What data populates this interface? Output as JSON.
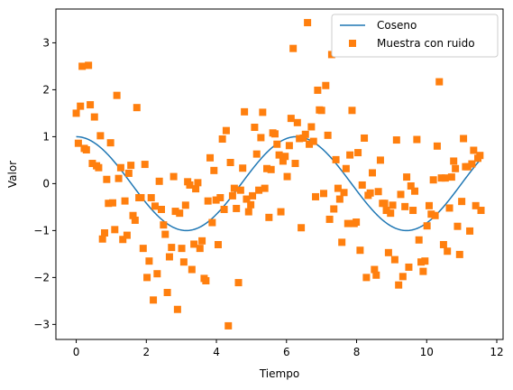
{
  "chart_data": {
    "type": "scatter",
    "title": "",
    "xlabel": "Tiempo",
    "ylabel": "Valor",
    "xlim": [
      -0.58,
      12.18
    ],
    "ylim": [
      -3.32,
      3.72
    ],
    "xticks": [
      0,
      2,
      4,
      6,
      8,
      10,
      12
    ],
    "yticks": [
      -3,
      -2,
      -1,
      0,
      1,
      2,
      3
    ],
    "grid": false,
    "legend": {
      "position": "upper right",
      "entries": [
        "Coseno",
        "Muestra con ruido"
      ]
    },
    "series": [
      {
        "name": "Coseno",
        "kind": "line",
        "color": "#1f77b4",
        "function": "cos",
        "x_range": [
          0,
          11.5
        ]
      },
      {
        "name": "Muestra con ruido",
        "kind": "scatter",
        "marker": "square",
        "color": "#ff7f0e",
        "points": [
          [
            0.0,
            1.5
          ],
          [
            0.06,
            0.86
          ],
          [
            0.12,
            1.65
          ],
          [
            0.17,
            2.5
          ],
          [
            0.23,
            0.75
          ],
          [
            0.29,
            0.72
          ],
          [
            0.35,
            2.52
          ],
          [
            0.4,
            1.68
          ],
          [
            0.46,
            0.43
          ],
          [
            0.52,
            1.42
          ],
          [
            0.58,
            0.38
          ],
          [
            0.64,
            0.34
          ],
          [
            0.69,
            1.02
          ],
          [
            0.75,
            -1.18
          ],
          [
            0.81,
            -1.05
          ],
          [
            0.87,
            0.09
          ],
          [
            0.92,
            -0.42
          ],
          [
            0.98,
            0.87
          ],
          [
            1.04,
            -0.41
          ],
          [
            1.1,
            -0.98
          ],
          [
            1.16,
            1.88
          ],
          [
            1.21,
            0.11
          ],
          [
            1.27,
            0.34
          ],
          [
            1.33,
            -1.19
          ],
          [
            1.39,
            -0.37
          ],
          [
            1.45,
            -1.1
          ],
          [
            1.5,
            0.22
          ],
          [
            1.56,
            0.39
          ],
          [
            1.62,
            -0.68
          ],
          [
            1.68,
            -0.78
          ],
          [
            1.73,
            1.62
          ],
          [
            1.79,
            -0.3
          ],
          [
            1.85,
            -0.3
          ],
          [
            1.91,
            -1.38
          ],
          [
            1.96,
            0.41
          ],
          [
            2.02,
            -2.0
          ],
          [
            2.08,
            -1.65
          ],
          [
            2.14,
            -0.3
          ],
          [
            2.2,
            -2.48
          ],
          [
            2.25,
            -0.48
          ],
          [
            2.31,
            -1.92
          ],
          [
            2.37,
            0.05
          ],
          [
            2.43,
            -0.55
          ],
          [
            2.49,
            -0.88
          ],
          [
            2.54,
            -1.08
          ],
          [
            2.6,
            -2.32
          ],
          [
            2.66,
            -1.56
          ],
          [
            2.72,
            -1.36
          ],
          [
            2.78,
            0.15
          ],
          [
            2.83,
            -0.59
          ],
          [
            2.89,
            -2.68
          ],
          [
            2.95,
            -0.63
          ],
          [
            3.01,
            -1.38
          ],
          [
            3.07,
            -1.67
          ],
          [
            3.12,
            -0.46
          ],
          [
            3.18,
            0.04
          ],
          [
            3.24,
            -0.03
          ],
          [
            3.3,
            -1.83
          ],
          [
            3.36,
            -1.29
          ],
          [
            3.41,
            -0.11
          ],
          [
            3.47,
            0.02
          ],
          [
            3.53,
            -1.38
          ],
          [
            3.59,
            -1.22
          ],
          [
            3.65,
            -2.02
          ],
          [
            3.7,
            -2.07
          ],
          [
            3.76,
            -0.37
          ],
          [
            3.82,
            0.55
          ],
          [
            3.88,
            -0.83
          ],
          [
            3.93,
            0.28
          ],
          [
            3.99,
            -0.35
          ],
          [
            4.05,
            -1.3
          ],
          [
            4.11,
            -0.3
          ],
          [
            4.17,
            0.95
          ],
          [
            4.22,
            -0.55
          ],
          [
            4.28,
            1.13
          ],
          [
            4.34,
            -3.03
          ],
          [
            4.4,
            0.45
          ],
          [
            4.46,
            -0.26
          ],
          [
            4.51,
            -0.1
          ],
          [
            4.57,
            -0.53
          ],
          [
            4.63,
            -2.11
          ],
          [
            4.69,
            -0.14
          ],
          [
            4.75,
            0.33
          ],
          [
            4.8,
            1.53
          ],
          [
            4.86,
            -0.33
          ],
          [
            4.92,
            -0.6
          ],
          [
            4.98,
            -0.45
          ],
          [
            5.03,
            -0.26
          ],
          [
            5.09,
            1.2
          ],
          [
            5.15,
            0.63
          ],
          [
            5.21,
            -0.14
          ],
          [
            5.27,
            0.98
          ],
          [
            5.32,
            1.52
          ],
          [
            5.38,
            -0.1
          ],
          [
            5.44,
            0.32
          ],
          [
            5.5,
            -0.72
          ],
          [
            5.56,
            0.3
          ],
          [
            5.61,
            1.08
          ],
          [
            5.67,
            1.06
          ],
          [
            5.73,
            0.84
          ],
          [
            5.79,
            0.61
          ],
          [
            5.84,
            -0.6
          ],
          [
            5.9,
            0.48
          ],
          [
            5.96,
            0.58
          ],
          [
            6.02,
            0.15
          ],
          [
            6.08,
            0.81
          ],
          [
            6.13,
            1.39
          ],
          [
            6.19,
            2.88
          ],
          [
            6.25,
            0.43
          ],
          [
            6.31,
            1.3
          ],
          [
            6.37,
            0.96
          ],
          [
            6.42,
            -0.94
          ],
          [
            6.48,
            0.97
          ],
          [
            6.54,
            1.05
          ],
          [
            6.6,
            3.43
          ],
          [
            6.65,
            0.84
          ],
          [
            6.71,
            1.21
          ],
          [
            6.77,
            0.9
          ],
          [
            6.83,
            -0.28
          ],
          [
            6.89,
            1.99
          ],
          [
            6.94,
            1.57
          ],
          [
            7.0,
            1.56
          ],
          [
            7.06,
            -0.21
          ],
          [
            7.12,
            2.09
          ],
          [
            7.18,
            1.03
          ],
          [
            7.23,
            -0.76
          ],
          [
            7.29,
            2.75
          ],
          [
            7.35,
            -0.54
          ],
          [
            7.41,
            0.51
          ],
          [
            7.47,
            -0.1
          ],
          [
            7.52,
            -0.33
          ],
          [
            7.58,
            -1.25
          ],
          [
            7.64,
            -0.19
          ],
          [
            7.7,
            0.32
          ],
          [
            7.75,
            -0.85
          ],
          [
            7.81,
            0.61
          ],
          [
            7.87,
            1.56
          ],
          [
            7.93,
            -0.85
          ],
          [
            7.99,
            -0.82
          ],
          [
            8.04,
            0.66
          ],
          [
            8.1,
            -1.42
          ],
          [
            8.16,
            -0.03
          ],
          [
            8.22,
            0.97
          ],
          [
            8.28,
            -2.0
          ],
          [
            8.33,
            -0.25
          ],
          [
            8.39,
            -0.2
          ],
          [
            8.45,
            0.23
          ],
          [
            8.51,
            -1.83
          ],
          [
            8.56,
            -1.95
          ],
          [
            8.62,
            -0.17
          ],
          [
            8.68,
            0.5
          ],
          [
            8.74,
            -0.42
          ],
          [
            8.8,
            -0.42
          ],
          [
            8.85,
            -0.57
          ],
          [
            8.91,
            -1.47
          ],
          [
            8.97,
            -0.63
          ],
          [
            9.03,
            -0.46
          ],
          [
            9.09,
            -1.62
          ],
          [
            9.14,
            0.93
          ],
          [
            9.2,
            -2.16
          ],
          [
            9.26,
            -0.23
          ],
          [
            9.32,
            -1.98
          ],
          [
            9.38,
            -0.49
          ],
          [
            9.43,
            0.14
          ],
          [
            9.49,
            -1.78
          ],
          [
            9.55,
            -0.05
          ],
          [
            9.61,
            -0.57
          ],
          [
            9.66,
            -0.16
          ],
          [
            9.72,
            0.94
          ],
          [
            9.78,
            -1.2
          ],
          [
            9.84,
            -1.67
          ],
          [
            9.9,
            -1.87
          ],
          [
            9.95,
            -1.65
          ],
          [
            10.01,
            -0.9
          ],
          [
            10.07,
            -0.47
          ],
          [
            10.13,
            -0.65
          ],
          [
            10.19,
            0.08
          ],
          [
            10.24,
            -0.68
          ],
          [
            10.3,
            0.8
          ],
          [
            10.36,
            2.17
          ],
          [
            10.42,
            0.12
          ],
          [
            10.48,
            -1.3
          ],
          [
            10.53,
            0.12
          ],
          [
            10.59,
            -1.44
          ],
          [
            10.65,
            -0.52
          ],
          [
            10.71,
            0.14
          ],
          [
            10.77,
            0.48
          ],
          [
            10.82,
            0.32
          ],
          [
            10.88,
            -0.91
          ],
          [
            10.94,
            -1.51
          ],
          [
            11.0,
            -0.38
          ],
          [
            11.05,
            0.96
          ],
          [
            11.11,
            0.36
          ],
          [
            11.17,
            0.36
          ],
          [
            11.23,
            -1.01
          ],
          [
            11.29,
            0.42
          ],
          [
            11.34,
            0.71
          ],
          [
            11.4,
            -0.47
          ],
          [
            11.46,
            0.54
          ],
          [
            11.52,
            0.6
          ],
          [
            11.55,
            -0.57
          ]
        ]
      }
    ]
  }
}
